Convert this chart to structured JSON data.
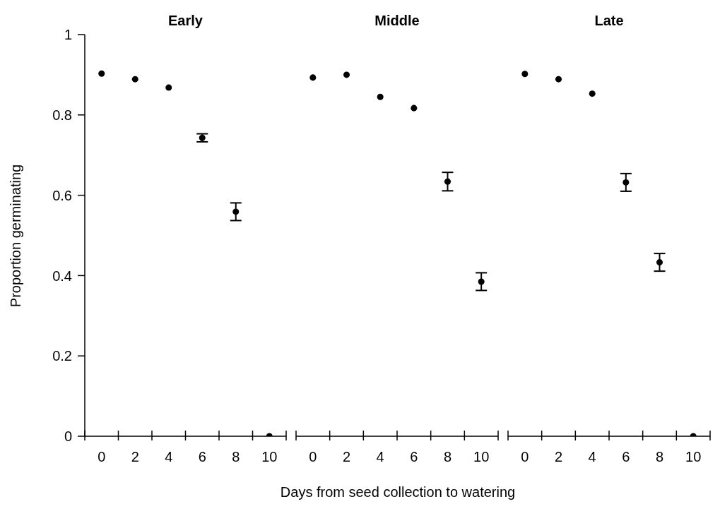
{
  "chart_data": [
    {
      "type": "scatter",
      "title": "Early",
      "ylabel": "Proportion germinating",
      "categories": [
        "0",
        "2",
        "4",
        "6",
        "8",
        "10"
      ],
      "values": [
        0.903,
        0.889,
        0.868,
        0.743,
        0.559,
        0
      ],
      "errors": [
        null,
        null,
        null,
        0.01,
        0.022,
        null
      ],
      "color": "#000000",
      "marker": "circle",
      "ylim": [
        0,
        1
      ],
      "yticks": [
        0,
        0.2,
        0.4,
        0.6,
        0.8,
        1
      ],
      "grid": false,
      "legend": false
    },
    {
      "type": "scatter",
      "title": "Middle",
      "xlabel": "Days from seed collection to watering",
      "categories": [
        "0",
        "2",
        "4",
        "6",
        "8",
        "10"
      ],
      "values": [
        0.893,
        0.9,
        0.845,
        0.817,
        0.634,
        0.385
      ],
      "errors": [
        null,
        null,
        null,
        null,
        0.023,
        0.022
      ],
      "color": "#000000",
      "marker": "circle",
      "ylim": [
        0,
        1
      ],
      "tick_labels": "x",
      "grid": false,
      "legend": false
    },
    {
      "type": "scatter",
      "title": "Late",
      "categories": [
        "0",
        "2",
        "4",
        "6",
        "8",
        "10"
      ],
      "values": [
        0.902,
        0.889,
        0.853,
        0.632,
        0.433,
        0
      ],
      "errors": [
        null,
        null,
        null,
        0.022,
        0.022,
        null
      ],
      "color": "#000000",
      "marker": "circle",
      "ylim": [
        0,
        1
      ],
      "tick_labels": "x",
      "grid": false,
      "legend": false
    }
  ]
}
